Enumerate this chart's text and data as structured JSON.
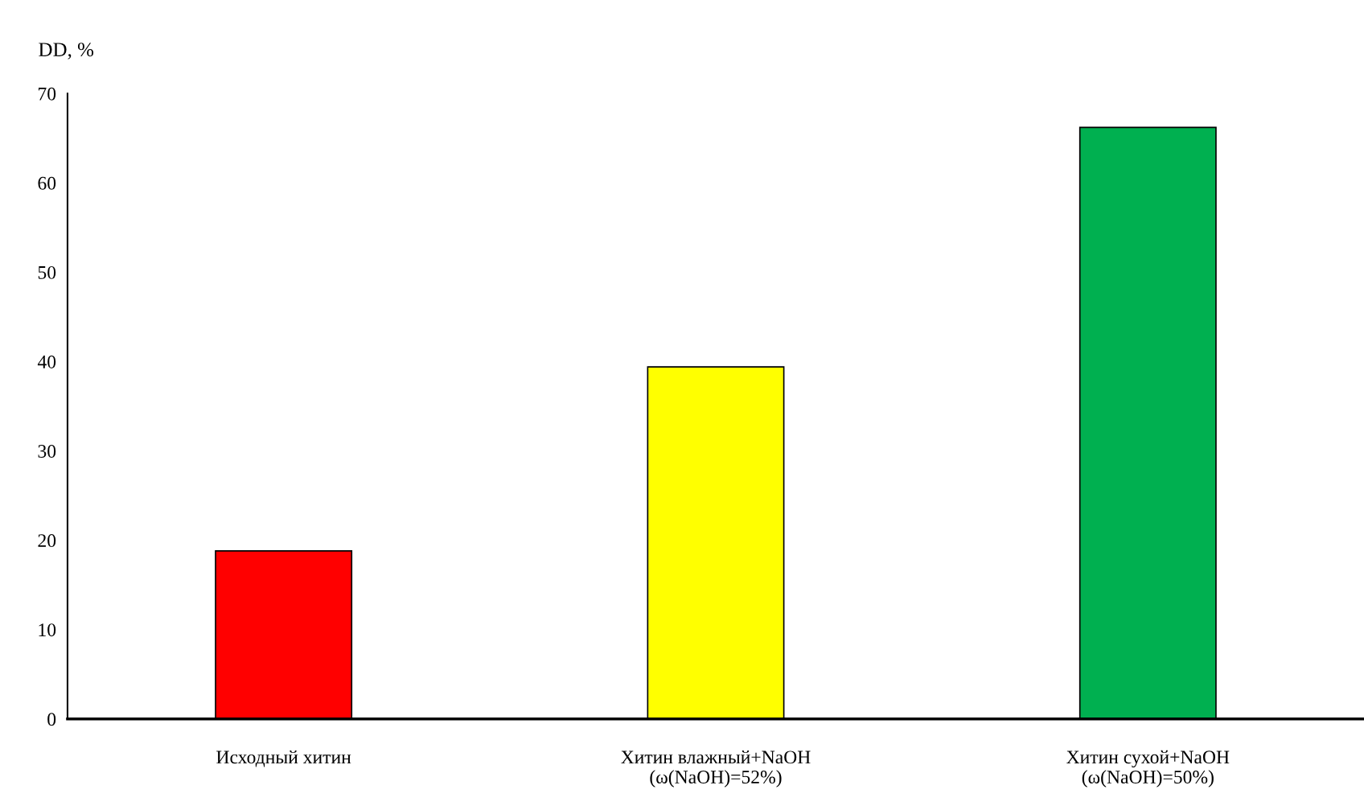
{
  "chart_data": {
    "type": "bar",
    "ylabel": "DD, %",
    "categories": [
      "Исходный хитин",
      "Хитин влажный+NaOH\n(ω(NaOH)=52%)",
      "Хитин сухой+NaOH\n(ω(NaOH)=50%)"
    ],
    "values": [
      18.8,
      39.4,
      66.2
    ],
    "colors": [
      "#ff0000",
      "#ffff00",
      "#00b050"
    ],
    "ylim": [
      0,
      70
    ],
    "yticks": [
      0,
      10,
      20,
      30,
      40,
      50,
      60,
      70
    ],
    "grid": false,
    "legend": false
  }
}
